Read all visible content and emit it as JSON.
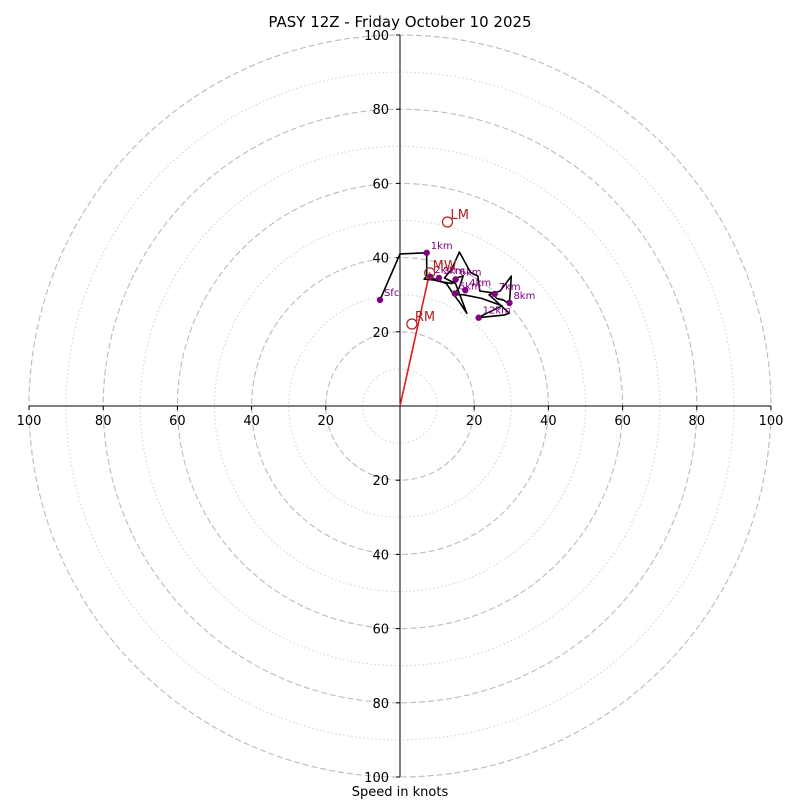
{
  "chart_data": {
    "type": "hodograph",
    "title": "PASY 12Z - Friday October 10 2025",
    "xlabel": "Speed in knots",
    "units": "knots",
    "range": [
      -100,
      100
    ],
    "ring_major": [
      20,
      40,
      60,
      80,
      100
    ],
    "ring_minor": [
      10,
      30,
      50,
      70,
      90
    ],
    "tick_labels": {
      "x": [
        {
          "value": -100,
          "label": "100"
        },
        {
          "value": -80,
          "label": "80"
        },
        {
          "value": -60,
          "label": "60"
        },
        {
          "value": -40,
          "label": "40"
        },
        {
          "value": -20,
          "label": "20"
        },
        {
          "value": 20,
          "label": "20"
        },
        {
          "value": 40,
          "label": "40"
        },
        {
          "value": 60,
          "label": "60"
        },
        {
          "value": 80,
          "label": "80"
        },
        {
          "value": 100,
          "label": "100"
        }
      ],
      "y": [
        {
          "value": 100,
          "label": "100"
        },
        {
          "value": 80,
          "label": "80"
        },
        {
          "value": 60,
          "label": "60"
        },
        {
          "value": 40,
          "label": "40"
        },
        {
          "value": 20,
          "label": "20"
        },
        {
          "value": -20,
          "label": "20"
        },
        {
          "value": -40,
          "label": "40"
        },
        {
          "value": -60,
          "label": "60"
        },
        {
          "value": -80,
          "label": "80"
        },
        {
          "value": -100,
          "label": "100"
        }
      ]
    },
    "hodograph_trace": [
      [
        -5.4,
        28.6
      ],
      [
        0,
        41
      ],
      [
        7.2,
        41.3
      ],
      [
        7.2,
        35
      ],
      [
        6.5,
        34.2
      ],
      [
        9,
        34
      ],
      [
        11,
        33.5
      ],
      [
        14,
        33
      ],
      [
        15,
        34.5
      ],
      [
        17,
        35
      ],
      [
        16,
        32
      ],
      [
        14.5,
        30
      ],
      [
        16,
        28
      ],
      [
        18,
        25
      ],
      [
        15,
        33
      ],
      [
        12,
        34.5
      ],
      [
        14,
        37
      ],
      [
        16,
        41.5
      ],
      [
        19,
        36
      ],
      [
        21,
        35
      ],
      [
        21.5,
        31
      ],
      [
        25,
        30.5
      ],
      [
        26,
        29
      ],
      [
        28,
        28.5
      ],
      [
        29.5,
        27.5
      ],
      [
        30,
        35
      ],
      [
        27,
        31
      ],
      [
        24,
        30
      ],
      [
        29.5,
        25
      ],
      [
        28,
        24.5
      ],
      [
        21,
        23.8
      ],
      [
        27.5,
        27
      ],
      [
        22,
        29
      ],
      [
        17,
        30
      ],
      [
        14.5,
        30
      ],
      [
        12.5,
        33
      ],
      [
        10,
        34
      ],
      [
        8.5,
        34.5
      ],
      [
        7.7,
        34.1
      ]
    ],
    "height_markers": [
      {
        "label": "Sfc",
        "u": -5.4,
        "v": 28.6
      },
      {
        "label": "1km",
        "u": 7.2,
        "v": 41.3
      },
      {
        "label": "2km",
        "u": 8.2,
        "v": 34.8
      },
      {
        "label": "3km",
        "u": 10.5,
        "v": 34.5
      },
      {
        "label": "4km",
        "u": 17.6,
        "v": 31.2
      },
      {
        "label": "5km",
        "u": 14.8,
        "v": 30.3
      },
      {
        "label": "6km",
        "u": 15,
        "v": 34.1
      },
      {
        "label": "7km",
        "u": 25.5,
        "v": 30.2
      },
      {
        "label": "8km",
        "u": 29.5,
        "v": 27.8
      },
      {
        "label": "12km",
        "u": 21.2,
        "v": 23.8
      }
    ],
    "storm_motions": [
      {
        "label": "LM",
        "u": 12.8,
        "v": 49.6
      },
      {
        "label": "RM",
        "u": 3.2,
        "v": 22.1
      },
      {
        "label": "MW",
        "u": 8,
        "v": 35.9
      }
    ],
    "bunkers_vector": {
      "from": [
        0,
        0
      ],
      "to": [
        8,
        36
      ]
    },
    "colors": {
      "grid": "#bbbbbb",
      "axis": "#000000",
      "trace": "#000000",
      "height_marker": "#800080",
      "storm_motion": "#b22222",
      "vector": "#e31a1c"
    }
  }
}
